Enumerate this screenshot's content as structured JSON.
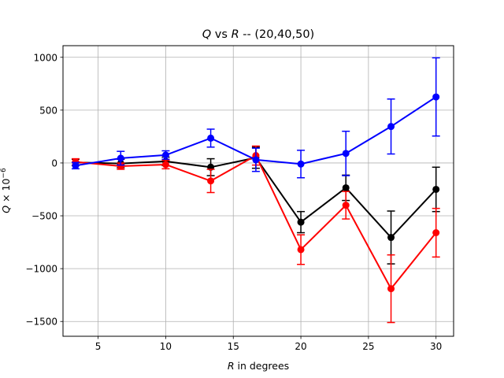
{
  "chart_data": {
    "type": "line",
    "title": "Q vs R -- (20,40,50)",
    "title_parts": {
      "q": "Q",
      "vs": " vs ",
      "r": "R",
      "rest": " -- (20,40,50)"
    },
    "xlabel": "R in degrees",
    "xlabel_parts": {
      "var": "R",
      "rest": " in degrees"
    },
    "ylabel": "Q × 10⁻⁶",
    "ylabel_parts": {
      "var": "Q",
      "rest": " × 10",
      "exp": "−6"
    },
    "xlim": [
      2.4,
      31.3
    ],
    "ylim": [
      -1640,
      1110
    ],
    "x_ticks": [
      5,
      10,
      15,
      20,
      25,
      30
    ],
    "y_ticks": [
      -1500,
      -1000,
      -500,
      0,
      500,
      1000
    ],
    "x_tick_labels": [
      "5",
      "10",
      "15",
      "20",
      "25",
      "30"
    ],
    "y_tick_labels": [
      "−1500",
      "−1000",
      "−500",
      "0",
      "500",
      "1000"
    ],
    "grid": true,
    "x": [
      3.33,
      6.67,
      10,
      13.33,
      16.67,
      20,
      23.33,
      26.67,
      30
    ],
    "series": [
      {
        "color": "#000000",
        "values": [
          5,
          -5,
          15,
          -40,
          50,
          -560,
          -235,
          -705,
          -250
        ],
        "errors": [
          30,
          40,
          40,
          80,
          100,
          100,
          120,
          250,
          210
        ]
      },
      {
        "color": "#ff0000",
        "values": [
          10,
          -30,
          -15,
          -170,
          70,
          -820,
          -400,
          -1190,
          -660
        ],
        "errors": [
          30,
          30,
          40,
          110,
          90,
          140,
          130,
          320,
          230
        ]
      },
      {
        "color": "#0000ff",
        "values": [
          -25,
          45,
          75,
          235,
          30,
          -10,
          90,
          345,
          625
        ],
        "errors": [
          30,
          65,
          40,
          85,
          110,
          130,
          210,
          260,
          370
        ]
      }
    ]
  }
}
